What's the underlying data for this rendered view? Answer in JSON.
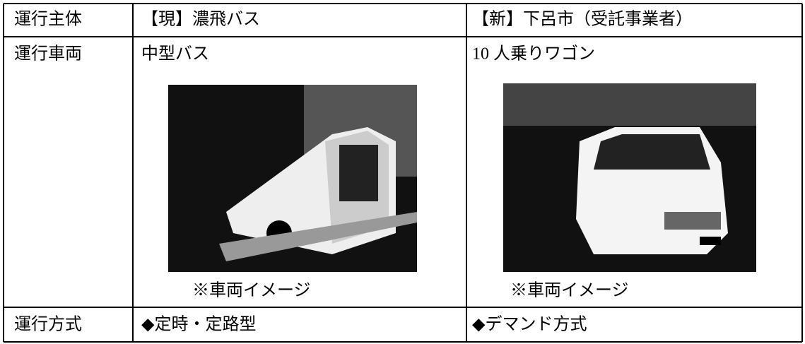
{
  "table": {
    "rows": [
      [
        "運行主体",
        "【現】濃飛バス",
        "【新】下呂市（受託事業者）"
      ],
      [
        "運行車両",
        {
          "label": "中型バス",
          "caption": "※車両イメージ"
        },
        {
          "label": "10 人乗りワゴン",
          "caption": "※車両イメージ"
        }
      ],
      [
        "運行方式",
        "◆定時・定路型",
        "◆デマンド方式"
      ]
    ]
  }
}
